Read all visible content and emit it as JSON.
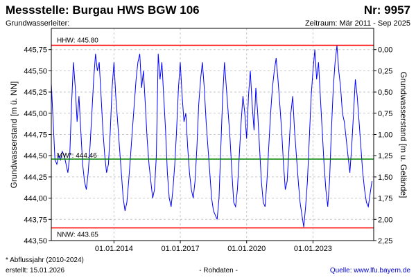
{
  "chart_data": {
    "type": "line",
    "title": "Messstelle: Burgau HWS BGW 106",
    "number": "Nr: 9957",
    "subtitle": "Grundwasserleiter:",
    "period": "Zeitraum: Mär 2011 - Sep 2025",
    "y_label": "Grundwasserstand [m ü. NN]",
    "y2_label": "Grundwasserstand [m u. Gelände]",
    "footnote": "* Abflussjahr (2010-2024)",
    "created": "erstellt:  15.01.2026",
    "data_status": "- Rohdaten -",
    "source": "Quelle:  www.lfu.bayern.de",
    "color": "#0000ff",
    "grid": true,
    "y2_inverted": true,
    "xlim": [
      "2011-03-01",
      "2025-09-30"
    ],
    "xticks": [
      {
        "value": "2014-01-01",
        "label": "01.01.2014"
      },
      {
        "value": "2017-01-01",
        "label": "01.01.2017"
      },
      {
        "value": "2020-01-01",
        "label": "01.01.2020"
      },
      {
        "value": "2023-01-01",
        "label": "01.01.2023"
      }
    ],
    "ylim": [
      443.5,
      446.0
    ],
    "yticks": [
      {
        "value": 443.5,
        "label": "443,50"
      },
      {
        "value": 443.75,
        "label": "443,75"
      },
      {
        "value": 444.0,
        "label": "444,00"
      },
      {
        "value": 444.25,
        "label": "444,25"
      },
      {
        "value": 444.5,
        "label": "444,50"
      },
      {
        "value": 444.75,
        "label": "444,75"
      },
      {
        "value": 445.0,
        "label": "445,00"
      },
      {
        "value": 445.25,
        "label": "445,25"
      },
      {
        "value": 445.5,
        "label": "445,50"
      },
      {
        "value": 445.75,
        "label": "445,75"
      }
    ],
    "y2lim": [
      -0.25,
      2.25
    ],
    "y2ticks": [
      {
        "value": 0,
        "label": "0,00"
      },
      {
        "value": 0.25,
        "label": "0,25"
      },
      {
        "value": 0.5,
        "label": "0,50"
      },
      {
        "value": 0.75,
        "label": "0,75"
      },
      {
        "value": 1,
        "label": "1,00"
      },
      {
        "value": 1.25,
        "label": "1,25"
      },
      {
        "value": 1.5,
        "label": "1,50"
      },
      {
        "value": 1.75,
        "label": "1,75"
      },
      {
        "value": 2,
        "label": "2,00"
      },
      {
        "value": 2.25,
        "label": "2,25"
      }
    ],
    "reference_lines": [
      {
        "label": "HHW: 445.80",
        "value": 445.8,
        "color": "#ff0000"
      },
      {
        "label": "MW*: 444.46",
        "value": 444.46,
        "color": "#008000"
      },
      {
        "label": "NNW: 443.65",
        "value": 443.65,
        "color": "#ff0000"
      }
    ],
    "x": [
      "2011-03",
      "2011-04",
      "2011-05",
      "2011-06",
      "2011-07",
      "2011-08",
      "2011-09",
      "2011-10",
      "2011-11",
      "2011-12",
      "2012-01",
      "2012-02",
      "2012-03",
      "2012-04",
      "2012-05",
      "2012-06",
      "2012-07",
      "2012-08",
      "2012-09",
      "2012-10",
      "2012-11",
      "2012-12",
      "2013-01",
      "2013-02",
      "2013-03",
      "2013-04",
      "2013-05",
      "2013-06",
      "2013-07",
      "2013-08",
      "2013-09",
      "2013-10",
      "2013-11",
      "2013-12",
      "2014-01",
      "2014-02",
      "2014-03",
      "2014-04",
      "2014-05",
      "2014-06",
      "2014-07",
      "2014-08",
      "2014-09",
      "2014-10",
      "2014-11",
      "2014-12",
      "2015-01",
      "2015-02",
      "2015-03",
      "2015-04",
      "2015-05",
      "2015-06",
      "2015-07",
      "2015-08",
      "2015-09",
      "2015-10",
      "2015-11",
      "2015-12",
      "2016-01",
      "2016-02",
      "2016-03",
      "2016-04",
      "2016-05",
      "2016-06",
      "2016-07",
      "2016-08",
      "2016-09",
      "2016-10",
      "2016-11",
      "2016-12",
      "2017-01",
      "2017-02",
      "2017-03",
      "2017-04",
      "2017-05",
      "2017-06",
      "2017-07",
      "2017-08",
      "2017-09",
      "2017-10",
      "2017-11",
      "2017-12",
      "2018-01",
      "2018-02",
      "2018-03",
      "2018-04",
      "2018-05",
      "2018-06",
      "2018-07",
      "2018-08",
      "2018-09",
      "2018-10",
      "2018-11",
      "2018-12",
      "2019-01",
      "2019-02",
      "2019-03",
      "2019-04",
      "2019-05",
      "2019-06",
      "2019-07",
      "2019-08",
      "2019-09",
      "2019-10",
      "2019-11",
      "2019-12",
      "2020-01",
      "2020-02",
      "2020-03",
      "2020-04",
      "2020-05",
      "2020-06",
      "2020-07",
      "2020-08",
      "2020-09",
      "2020-10",
      "2020-11",
      "2020-12",
      "2021-01",
      "2021-02",
      "2021-03",
      "2021-04",
      "2021-05",
      "2021-06",
      "2021-07",
      "2021-08",
      "2021-09",
      "2021-10",
      "2021-11",
      "2021-12",
      "2022-01",
      "2022-02",
      "2022-03",
      "2022-04",
      "2022-05",
      "2022-06",
      "2022-07",
      "2022-08",
      "2022-09",
      "2022-10",
      "2022-11",
      "2022-12",
      "2023-01",
      "2023-02",
      "2023-03",
      "2023-04",
      "2023-05",
      "2023-06",
      "2023-07",
      "2023-08",
      "2023-09",
      "2023-10",
      "2023-11",
      "2023-12",
      "2024-01",
      "2024-02",
      "2024-03",
      "2024-04",
      "2024-05",
      "2024-06",
      "2024-07",
      "2024-08",
      "2024-09",
      "2024-10",
      "2024-11",
      "2024-12",
      "2025-01",
      "2025-02",
      "2025-03",
      "2025-04",
      "2025-05",
      "2025-06",
      "2025-07",
      "2025-08",
      "2025-09"
    ],
    "values": [
      445.35,
      444.9,
      444.45,
      444.4,
      444.5,
      444.45,
      444.55,
      444.5,
      444.4,
      444.3,
      444.5,
      445.1,
      445.6,
      445.3,
      444.9,
      445.2,
      444.8,
      444.4,
      444.2,
      444.1,
      444.3,
      444.6,
      445.0,
      445.4,
      445.7,
      445.5,
      445.6,
      445.2,
      444.8,
      444.5,
      444.3,
      444.4,
      444.8,
      445.3,
      445.6,
      445.2,
      444.9,
      444.6,
      444.3,
      444.0,
      443.85,
      443.95,
      444.2,
      444.5,
      444.8,
      445.1,
      445.4,
      445.6,
      445.7,
      445.3,
      445.5,
      445.1,
      444.7,
      444.4,
      444.2,
      444.0,
      444.1,
      444.5,
      445.7,
      445.4,
      445.6,
      445.2,
      444.8,
      444.3,
      444.0,
      443.9,
      444.1,
      444.4,
      444.8,
      445.3,
      445.6,
      445.2,
      444.9,
      445.0,
      444.6,
      444.3,
      444.1,
      444.0,
      444.2,
      444.6,
      445.1,
      445.4,
      445.6,
      445.3,
      444.9,
      444.6,
      444.3,
      444.0,
      443.85,
      443.8,
      443.75,
      444.0,
      444.6,
      445.2,
      445.6,
      445.3,
      445.0,
      444.7,
      444.3,
      443.95,
      443.9,
      444.1,
      444.5,
      444.9,
      445.2,
      445.0,
      444.7,
      445.2,
      445.5,
      445.1,
      444.8,
      445.3,
      445.0,
      444.6,
      444.2,
      443.95,
      443.9,
      444.2,
      444.6,
      445.0,
      445.3,
      445.5,
      445.65,
      445.4,
      445.1,
      444.8,
      444.4,
      444.1,
      444.2,
      444.6,
      445.0,
      445.2,
      444.8,
      444.5,
      444.2,
      443.95,
      443.8,
      443.66,
      443.9,
      444.2,
      444.7,
      445.2,
      445.5,
      445.75,
      445.4,
      445.6,
      445.2,
      444.8,
      444.4,
      444.1,
      443.9,
      444.2,
      444.8,
      445.3,
      445.6,
      445.8,
      445.5,
      445.3,
      445.0,
      444.9,
      444.7,
      444.5,
      444.3,
      444.6,
      445.0,
      445.4,
      445.2,
      444.9,
      444.6,
      444.3,
      444.1,
      443.95,
      443.9,
      444.05,
      444.2
    ]
  }
}
